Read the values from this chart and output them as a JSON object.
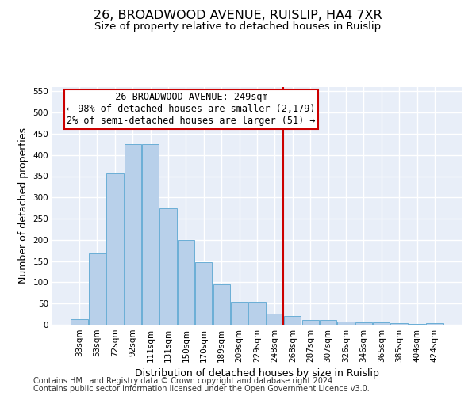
{
  "title_line1": "26, BROADWOOD AVENUE, RUISLIP, HA4 7XR",
  "title_line2": "Size of property relative to detached houses in Ruislip",
  "xlabel": "Distribution of detached houses by size in Ruislip",
  "ylabel": "Number of detached properties",
  "categories": [
    "33sqm",
    "53sqm",
    "72sqm",
    "92sqm",
    "111sqm",
    "131sqm",
    "150sqm",
    "170sqm",
    "189sqm",
    "209sqm",
    "229sqm",
    "248sqm",
    "268sqm",
    "287sqm",
    "307sqm",
    "326sqm",
    "346sqm",
    "365sqm",
    "385sqm",
    "404sqm",
    "424sqm"
  ],
  "values": [
    13,
    168,
    357,
    425,
    425,
    275,
    200,
    148,
    95,
    55,
    55,
    27,
    20,
    12,
    12,
    7,
    5,
    5,
    3,
    1,
    4
  ],
  "bar_color": "#b8d0ea",
  "bar_edge_color": "#6aaed6",
  "vline_index": 11,
  "annotation_text_line1": "  26 BROADWOOD AVENUE: 249sqm  ",
  "annotation_text_line2": "← 98% of detached houses are smaller (2,179)",
  "annotation_text_line3": "2% of semi-detached houses are larger (51) →",
  "annotation_box_color": "#ffffff",
  "annotation_edge_color": "#cc0000",
  "vline_color": "#cc0000",
  "ylim": [
    0,
    560
  ],
  "yticks": [
    0,
    50,
    100,
    150,
    200,
    250,
    300,
    350,
    400,
    450,
    500,
    550
  ],
  "bg_color": "#e8eef8",
  "grid_color": "#ffffff",
  "footer_line1": "Contains HM Land Registry data © Crown copyright and database right 2024.",
  "footer_line2": "Contains public sector information licensed under the Open Government Licence v3.0.",
  "title_fontsize": 11.5,
  "subtitle_fontsize": 9.5,
  "axis_label_fontsize": 9,
  "tick_fontsize": 7.5,
  "annotation_fontsize": 8.5,
  "footer_fontsize": 7
}
